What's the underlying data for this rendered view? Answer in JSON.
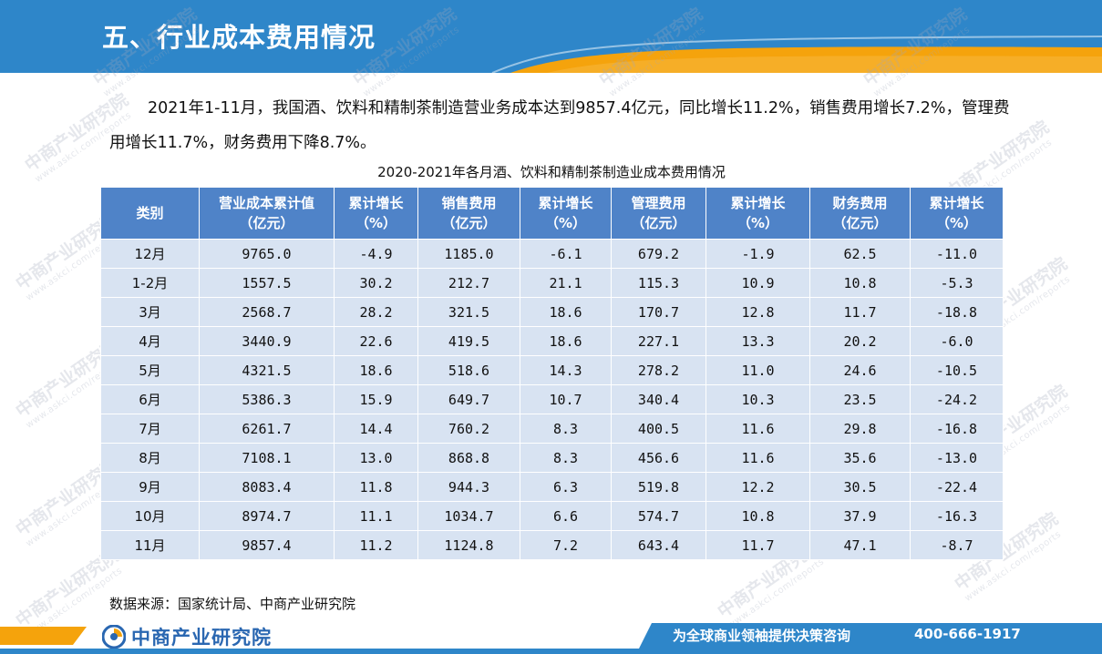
{
  "header": {
    "title": "五、行业成本费用情况",
    "colors": {
      "blue": "#2e86c9",
      "orange": "#f5a30c"
    }
  },
  "paragraph": "2021年1-11月，我国酒、饮料和精制茶制造营业务成本达到9857.4亿元，同比增长11.2%，销售费用增长7.2%，管理费用增长11.7%，财务费用下降8.7%。",
  "table": {
    "title": "2020-2021年各月酒、饮料和精制茶制造业成本费用情况",
    "columns": [
      "类别",
      "营业成本累计值\n（亿元）",
      "累计增长\n（%）",
      "销售费用\n（亿元）",
      "累计增长\n（%）",
      "管理费用\n（亿元）",
      "累计增长\n（%）",
      "财务费用\n（亿元）",
      "累计增长\n（%）"
    ],
    "rows": [
      [
        "12月",
        "9765.0",
        "-4.9",
        "1185.0",
        "-6.1",
        "679.2",
        "-1.9",
        "62.5",
        "-11.0"
      ],
      [
        "1-2月",
        "1557.5",
        "30.2",
        "212.7",
        "21.1",
        "115.3",
        "10.9",
        "10.8",
        "-5.3"
      ],
      [
        "3月",
        "2568.7",
        "28.2",
        "321.5",
        "18.6",
        "170.7",
        "12.8",
        "11.7",
        "-18.8"
      ],
      [
        "4月",
        "3440.9",
        "22.6",
        "419.5",
        "18.6",
        "227.1",
        "13.3",
        "20.2",
        "-6.0"
      ],
      [
        "5月",
        "4321.5",
        "18.6",
        "518.6",
        "14.3",
        "278.2",
        "11.0",
        "24.6",
        "-10.5"
      ],
      [
        "6月",
        "5386.3",
        "15.9",
        "649.7",
        "10.7",
        "340.4",
        "10.3",
        "23.5",
        "-24.2"
      ],
      [
        "7月",
        "6261.7",
        "14.4",
        "760.2",
        "8.3",
        "400.5",
        "11.6",
        "29.8",
        "-16.8"
      ],
      [
        "8月",
        "7108.1",
        "13.0",
        "868.8",
        "8.3",
        "456.6",
        "11.6",
        "35.6",
        "-13.0"
      ],
      [
        "9月",
        "8083.4",
        "11.8",
        "944.3",
        "6.3",
        "519.8",
        "12.2",
        "30.5",
        "-22.4"
      ],
      [
        "10月",
        "8974.7",
        "11.1",
        "1034.7",
        "6.6",
        "574.7",
        "10.8",
        "37.9",
        "-16.3"
      ],
      [
        "11月",
        "9857.4",
        "11.2",
        "1124.8",
        "7.2",
        "643.4",
        "11.7",
        "47.1",
        "-8.7"
      ]
    ],
    "colors": {
      "header_bg": "#4f83c8",
      "cell_bg": "#d8e3f2"
    }
  },
  "source": "数据来源：国家统计局、中商产业研究院",
  "footer": {
    "logo_text": "中商产业研究院",
    "logo_icon": "askci-logo-icon",
    "slogan": "为全球商业领袖提供决策咨询",
    "phone": "400-666-1917"
  },
  "watermark": {
    "text": "中商产业研究院",
    "url": "www.askci.com/reports"
  }
}
